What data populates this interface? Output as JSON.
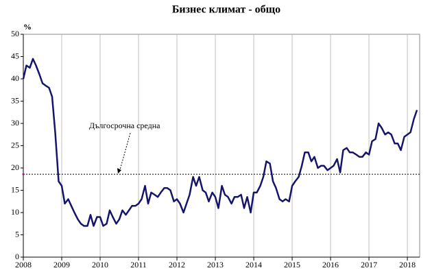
{
  "chart_data": {
    "type": "line",
    "title": "Бизнес климат - общо",
    "y_unit": "%",
    "x": [
      2008,
      2008.08,
      2008.17,
      2008.25,
      2008.33,
      2008.42,
      2008.5,
      2008.58,
      2008.67,
      2008.75,
      2008.83,
      2008.92,
      2009,
      2009.08,
      2009.17,
      2009.25,
      2009.33,
      2009.42,
      2009.5,
      2009.58,
      2009.67,
      2009.75,
      2009.83,
      2009.92,
      2010,
      2010.08,
      2010.17,
      2010.25,
      2010.33,
      2010.42,
      2010.5,
      2010.58,
      2010.67,
      2010.75,
      2010.83,
      2010.92,
      2011,
      2011.08,
      2011.17,
      2011.25,
      2011.33,
      2011.42,
      2011.5,
      2011.58,
      2011.67,
      2011.75,
      2011.83,
      2011.92,
      2012,
      2012.08,
      2012.17,
      2012.25,
      2012.33,
      2012.42,
      2012.5,
      2012.58,
      2012.67,
      2012.75,
      2012.83,
      2012.92,
      2013,
      2013.08,
      2013.17,
      2013.25,
      2013.33,
      2013.42,
      2013.5,
      2013.58,
      2013.67,
      2013.75,
      2013.83,
      2013.92,
      2014,
      2014.08,
      2014.17,
      2014.25,
      2014.33,
      2014.42,
      2014.5,
      2014.58,
      2014.67,
      2014.75,
      2014.83,
      2014.92,
      2015,
      2015.08,
      2015.17,
      2015.25,
      2015.33,
      2015.42,
      2015.5,
      2015.58,
      2015.67,
      2015.75,
      2015.83,
      2015.92,
      2016,
      2016.08,
      2016.17,
      2016.25,
      2016.33,
      2016.42,
      2016.5,
      2016.58,
      2016.67,
      2016.75,
      2016.83,
      2016.92,
      2017,
      2017.08,
      2017.17,
      2017.25,
      2017.33,
      2017.42,
      2017.5,
      2017.58,
      2017.67,
      2017.75,
      2017.83,
      2017.92,
      2018,
      2018.08,
      2018.17,
      2018.25
    ],
    "series": [
      {
        "color": "#14146b",
        "values": [
          40,
          43,
          42.5,
          44.5,
          43,
          41,
          39,
          38.5,
          38,
          36,
          28,
          17,
          16,
          12,
          13,
          11.5,
          10,
          8.5,
          7.5,
          7,
          7,
          9.5,
          7,
          9,
          9,
          7,
          7.5,
          10.5,
          9,
          7.5,
          8.5,
          10.5,
          9.5,
          10.5,
          11.5,
          11.5,
          12,
          13,
          16,
          12,
          14.5,
          14,
          13.5,
          14.5,
          15.5,
          15.5,
          15,
          12.5,
          13,
          12,
          10,
          12,
          14,
          18,
          16,
          18,
          15,
          14.5,
          12.5,
          14.5,
          13.5,
          11,
          16,
          14,
          13.5,
          12,
          13.5,
          13.5,
          14,
          11,
          13.5,
          10,
          14.5,
          14.5,
          16,
          18,
          21.5,
          21,
          17,
          15.5,
          13,
          12.5,
          13,
          12.5,
          16,
          17,
          18,
          20.5,
          23.5,
          23.5,
          21.5,
          22.5,
          20,
          20.5,
          20.5,
          19.5,
          20,
          20.5,
          22,
          19,
          24,
          24.5,
          23.5,
          23.5,
          23,
          22.5,
          22.5,
          23.5,
          23,
          26,
          26.5,
          30,
          29,
          27.5,
          28,
          27.5,
          25.5,
          25.5,
          24,
          27,
          27.5,
          28,
          31,
          33
        ]
      }
    ],
    "reference_line": {
      "value": 18.6,
      "label": "Дългосрочна средна",
      "color": "#000000"
    },
    "xlim": [
      2008,
      2018.32
    ],
    "xticks": [
      2008,
      2009,
      2010,
      2011,
      2012,
      2013,
      2014,
      2015,
      2016,
      2017,
      2018
    ],
    "ylim": [
      0,
      50
    ],
    "yticks": [
      0,
      5,
      10,
      15,
      20,
      25,
      30,
      35,
      40,
      45,
      50
    ],
    "grid": true
  }
}
